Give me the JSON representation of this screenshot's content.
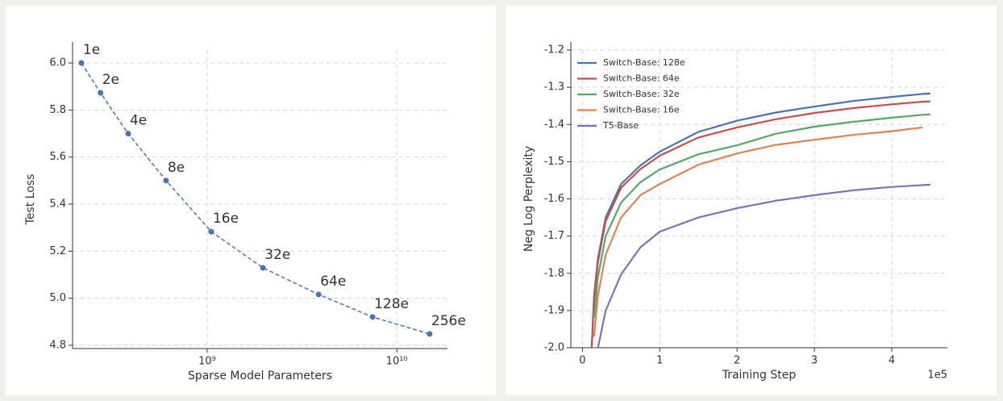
{
  "chart_data": [
    {
      "type": "line",
      "x_label": "Sparse Model Parameters",
      "y_label": "Test Loss",
      "x": [
        217000000,
        274000000,
        383000000,
        607000000,
        1050000000,
        1970000000,
        3870000000,
        7450000000,
        14900000000
      ],
      "series": [
        {
          "color": "#4c72b0",
          "values": [
            6.0,
            5.873,
            5.7,
            5.5,
            5.283,
            5.129,
            5.016,
            4.92,
            4.848
          ]
        }
      ],
      "point_labels": [
        "1e",
        "2e",
        "4e",
        "8e",
        "16e",
        "32e",
        "64e",
        "128e",
        "256e"
      ],
      "marker": true,
      "linestyle": "dashed",
      "xscale": "log",
      "xlim": [
        195000000,
        18500000000
      ],
      "ylim": [
        4.786,
        6.055
      ],
      "xticks": [
        {
          "value": 1000000000,
          "label": "10⁹"
        },
        {
          "value": 10000000000,
          "label": "10¹⁰"
        }
      ],
      "yticks": [
        4.8,
        {
          "value": 5,
          "label": "5.0"
        },
        5.2,
        5.4,
        5.6,
        5.8,
        {
          "value": 6,
          "label": "6.0"
        }
      ],
      "grid": true
    },
    {
      "type": "line",
      "x_label": "Training Step",
      "y_label": "Neg Log Perplexity",
      "x_offset_label": "1e5",
      "x": [
        0.12,
        0.15,
        0.2,
        0.3,
        0.5,
        0.75,
        1,
        1.5,
        2,
        2.5,
        3,
        3.5,
        4,
        4.4,
        4.5
      ],
      "series": [
        {
          "name": "Switch-Base: 128e",
          "color": "#4c72b0",
          "values": [
            -2.0,
            -1.86,
            -1.76,
            -1.65,
            -1.56,
            -1.51,
            -1.473,
            -1.42,
            -1.39,
            -1.368,
            -1.352,
            -1.337,
            -1.326,
            -1.318,
            -1.317
          ]
        },
        {
          "name": "Switch-Base: 64e",
          "color": "#c44e52",
          "values": [
            -2.0,
            -1.87,
            -1.77,
            -1.66,
            -1.57,
            -1.52,
            -1.484,
            -1.435,
            -1.408,
            -1.386,
            -1.369,
            -1.356,
            -1.346,
            -1.339,
            -1.338
          ]
        },
        {
          "name": "Switch-Base: 32e",
          "color": "#55a868",
          "values": [
            null,
            -1.92,
            -1.81,
            -1.7,
            -1.61,
            -1.555,
            -1.521,
            -1.48,
            -1.456,
            -1.425,
            -1.406,
            -1.393,
            -1.382,
            -1.374,
            -1.373
          ]
        },
        {
          "name": "Switch-Base: 16e",
          "color": "#dd8452",
          "values": [
            null,
            -1.97,
            -1.86,
            -1.75,
            -1.65,
            -1.59,
            -1.56,
            -1.508,
            -1.478,
            -1.455,
            -1.441,
            -1.428,
            -1.418,
            -1.408,
            null
          ]
        },
        {
          "name": "T5-Base",
          "color": "#8172b3",
          "values": [
            null,
            null,
            -2.0,
            -1.9,
            -1.803,
            -1.73,
            -1.688,
            -1.65,
            -1.625,
            -1.605,
            -1.59,
            -1.577,
            -1.568,
            -1.563,
            -1.562
          ]
        }
      ],
      "marker": false,
      "linestyle": "solid",
      "xscale": "linear",
      "legend": "upper left",
      "xlim": [
        -0.15,
        4.72
      ],
      "ylim": [
        -2.0,
        -1.2
      ],
      "xticks": [
        0,
        1,
        2,
        3,
        4
      ],
      "yticks": [
        {
          "value": -2,
          "label": "-2.0"
        },
        -1.9,
        -1.8,
        -1.7,
        -1.6,
        -1.5,
        -1.4,
        -1.3,
        -1.2
      ],
      "grid": true
    }
  ]
}
